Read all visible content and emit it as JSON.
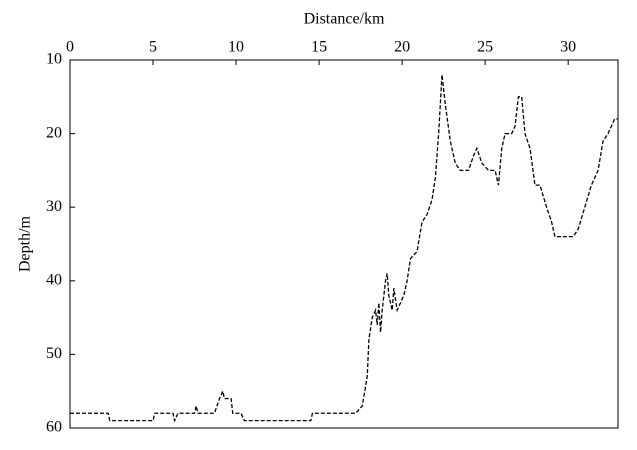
{
  "chart_data": {
    "type": "line",
    "xlabel": "Distance/km",
    "ylabel": "Depth/m",
    "x": [
      0,
      2.3,
      2.4,
      5,
      5.1,
      6.2,
      6.3,
      6.5,
      7.5,
      7.6,
      7.7,
      8.7,
      9.0,
      9.2,
      9.3,
      9.7,
      9.8,
      10.3,
      10.5,
      14.5,
      14.6,
      17.2,
      17.6,
      17.9,
      18.0,
      18.2,
      18.4,
      18.5,
      18.6,
      18.7,
      18.8,
      19.0,
      19.1,
      19.2,
      19.4,
      19.5,
      19.7,
      19.9,
      20.1,
      20.3,
      20.5,
      20.9,
      21.2,
      21.5,
      21.8,
      22.0,
      22.2,
      22.4,
      22.6,
      22.9,
      23.2,
      23.5,
      24.0,
      24.3,
      24.5,
      24.8,
      25.2,
      25.6,
      25.8,
      26.0,
      26.2,
      26.6,
      26.8,
      27.0,
      27.2,
      27.4,
      27.7,
      28.0,
      28.3,
      28.7,
      29.0,
      29.2,
      30.3,
      30.6,
      31.0,
      31.4,
      31.8,
      32.1,
      32.4,
      32.6,
      32.8,
      33.0
    ],
    "series": [
      {
        "color": "#000000",
        "values": [
          58,
          58,
          59,
          59,
          58,
          58,
          59,
          58,
          58,
          57,
          58,
          58,
          56,
          55,
          56,
          56,
          58,
          58,
          59,
          59,
          58,
          58,
          57,
          53,
          48,
          45,
          44,
          46,
          43,
          47,
          44,
          40,
          39,
          42,
          44,
          41,
          44,
          43,
          42,
          40,
          37,
          36,
          32,
          31,
          29,
          26,
          20,
          12,
          16,
          21,
          24,
          25,
          25,
          23,
          22,
          24,
          25,
          25,
          27,
          22,
          20,
          20,
          19,
          15,
          15,
          20,
          22,
          27,
          27,
          30,
          32,
          34,
          34,
          33,
          30,
          27,
          25,
          21,
          20,
          19,
          18,
          18
        ]
      }
    ],
    "xlim": [
      0,
      33
    ],
    "xticks": [
      0,
      5,
      10,
      15,
      20,
      25,
      30
    ],
    "ylim": [
      60,
      10
    ],
    "yticks": [
      10,
      20,
      30,
      40,
      50,
      60
    ]
  }
}
